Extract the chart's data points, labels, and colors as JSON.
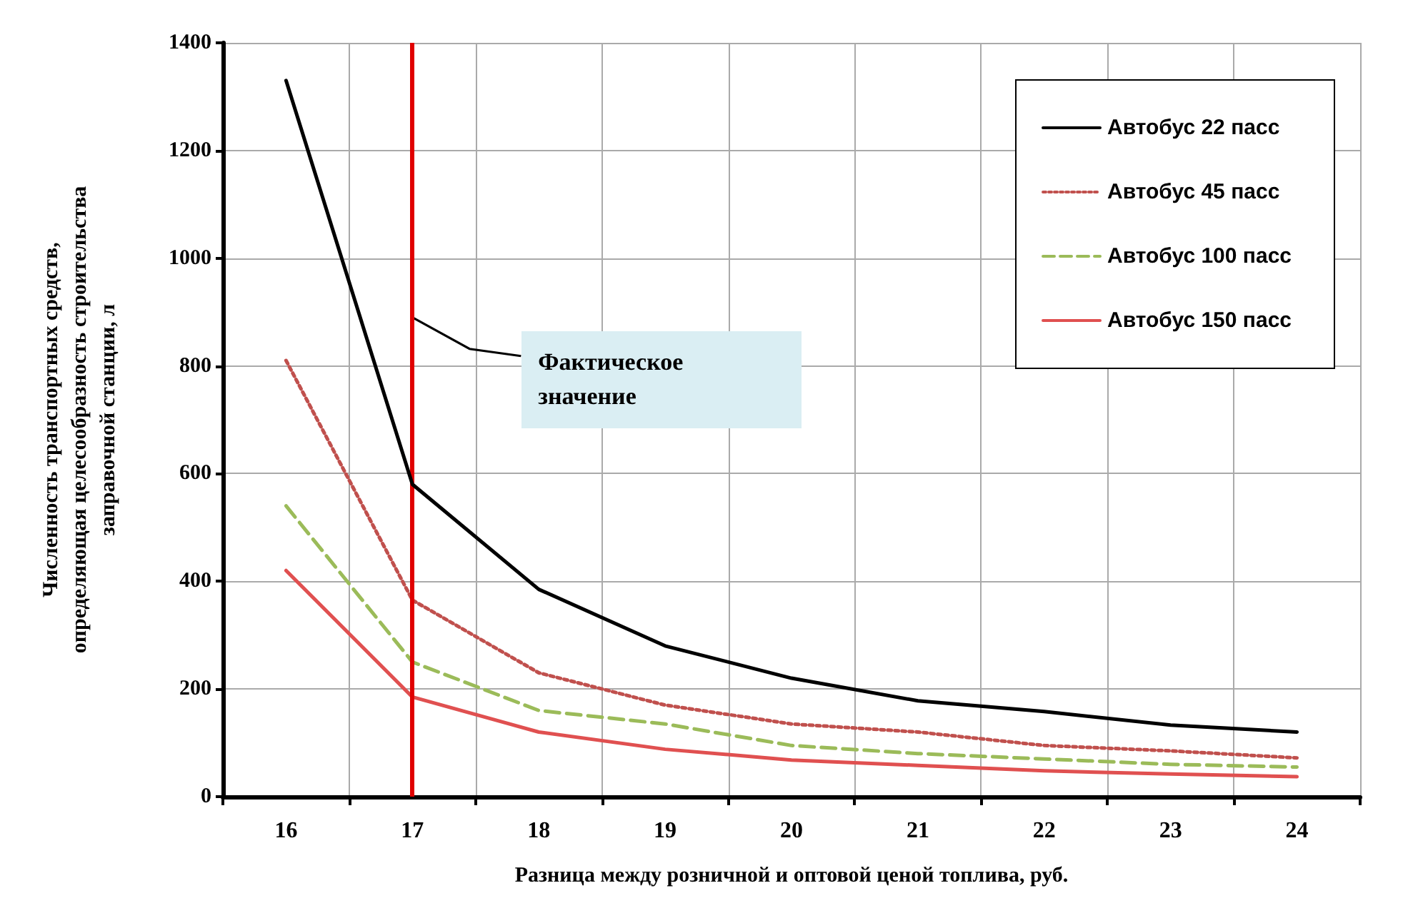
{
  "chart_data": {
    "type": "line",
    "xlabel": "Разница между розничной и оптовой ценой топлива, руб.",
    "ylabel": "Численность транспортных средств,\nопределяющая целесообразность строительства\nзаправочной станции, л",
    "categories": [
      "16",
      "17",
      "18",
      "19",
      "20",
      "21",
      "22",
      "23",
      "24"
    ],
    "series": [
      {
        "name": "Автобус 22 пасс",
        "color": "#000000",
        "line_style": "solid",
        "values": [
          1330,
          580,
          385,
          280,
          220,
          178,
          158,
          133,
          120
        ]
      },
      {
        "name": "Автобус 45 пасс",
        "color": "#c0504d",
        "line_style": "dotted",
        "values": [
          810,
          365,
          230,
          170,
          135,
          120,
          95,
          85,
          72
        ]
      },
      {
        "name": "Автобус 100 пасс",
        "color": "#9bbb59",
        "line_style": "dashed",
        "values": [
          540,
          250,
          160,
          135,
          95,
          80,
          70,
          60,
          55
        ]
      },
      {
        "name": "Автобус 150 пасс",
        "color": "#e05050",
        "line_style": "solid",
        "values": [
          420,
          185,
          120,
          88,
          68,
          58,
          48,
          42,
          37
        ]
      }
    ],
    "ylim": [
      0,
      1400
    ],
    "yticks": [
      0,
      200,
      400,
      600,
      800,
      1000,
      1200,
      1400
    ],
    "ref_lines": [
      {
        "axis": "x",
        "value": "17",
        "color": "#e00000"
      }
    ],
    "annotations": [
      {
        "text": "Фактическое\nзначение",
        "x": "17",
        "y": 890
      }
    ],
    "grid": true,
    "legend": "top right",
    "marker": "none"
  }
}
